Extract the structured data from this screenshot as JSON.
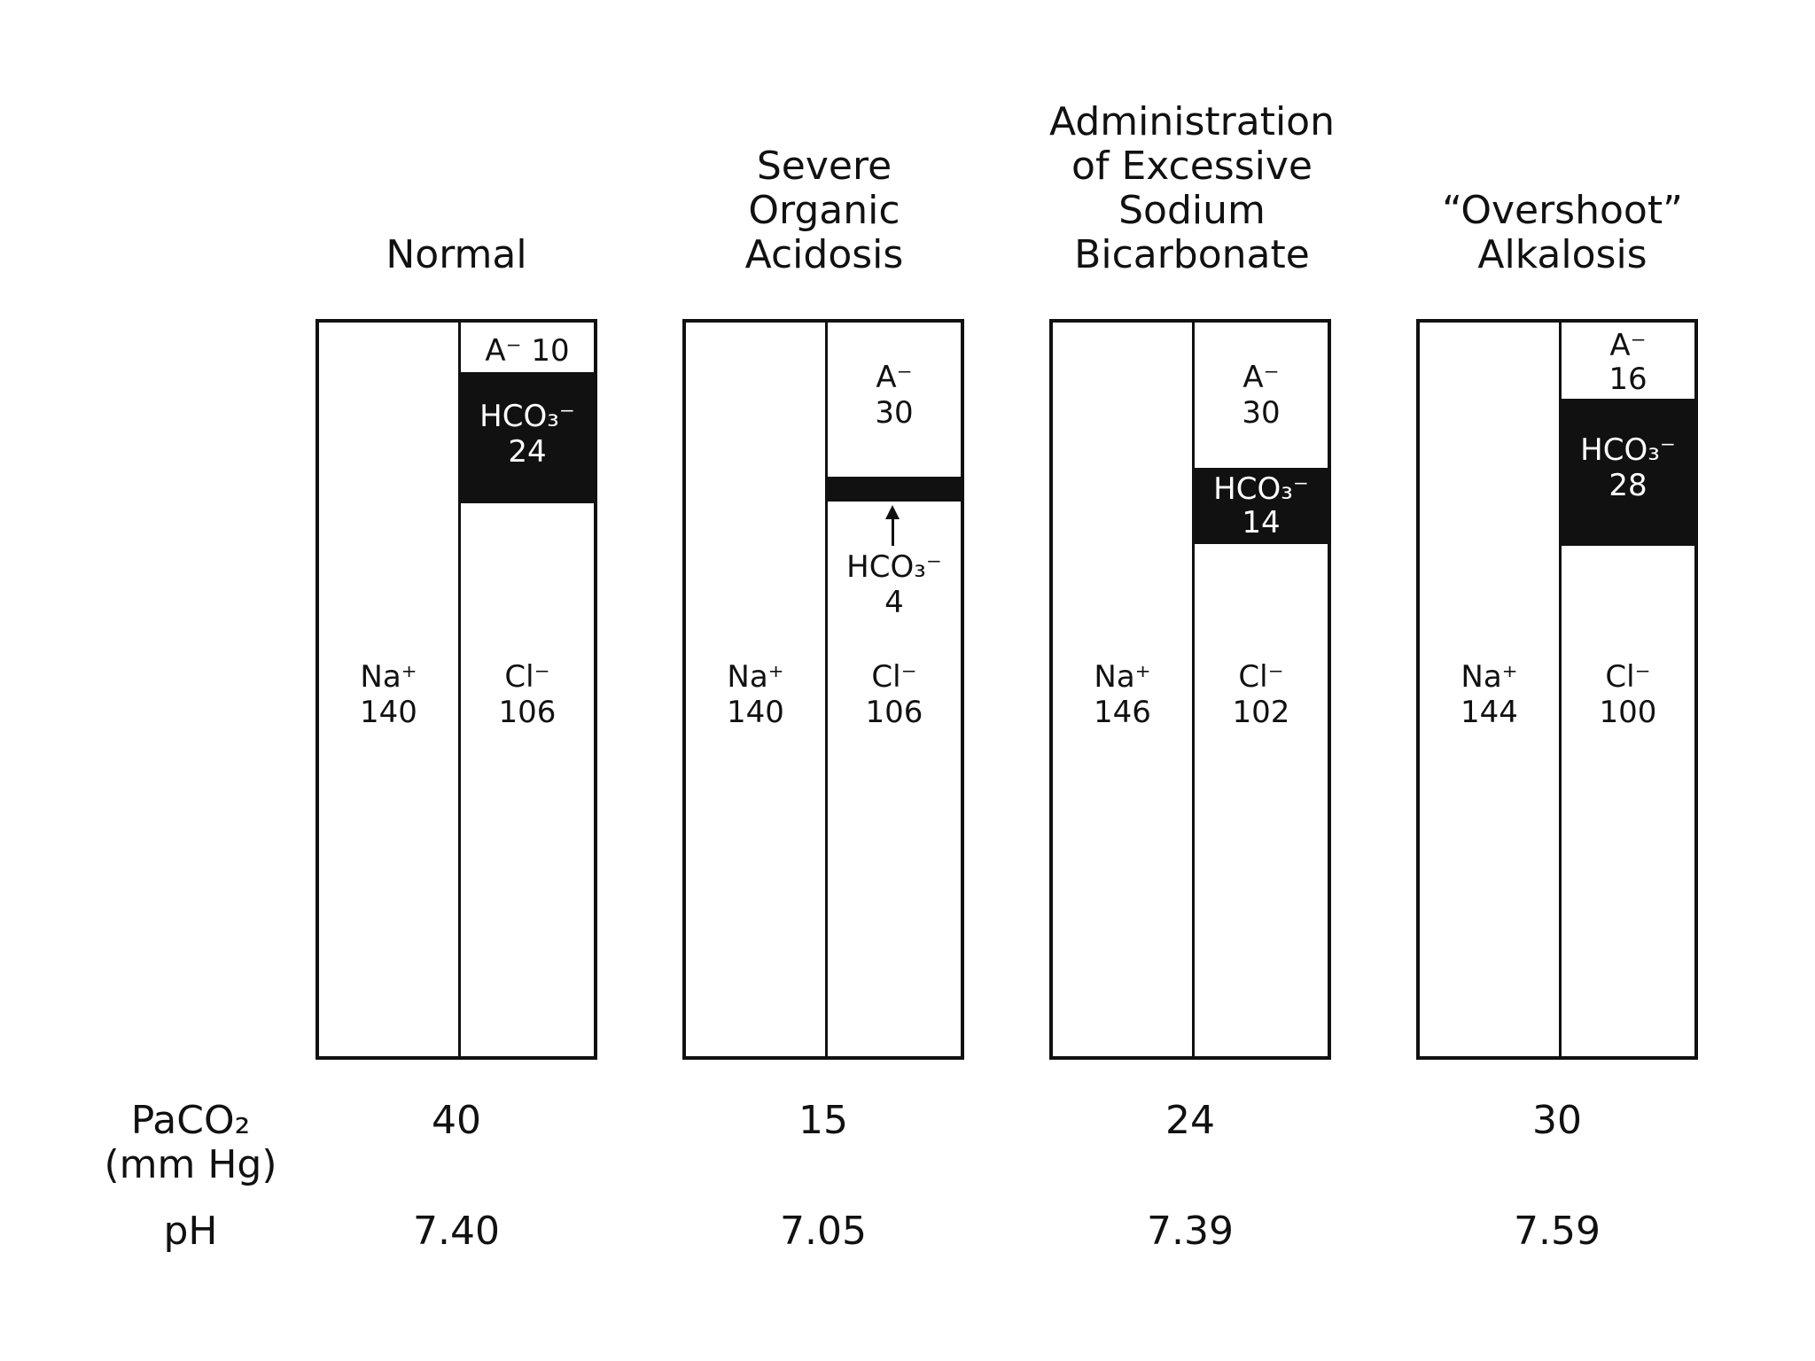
{
  "panels": [
    {
      "title": "Normal",
      "cation": {
        "ion": "Na⁺",
        "value": "140"
      },
      "anions": {
        "a": {
          "ion": "A⁻",
          "value": "10",
          "inline": "A⁻ 10"
        },
        "hco3": {
          "ion": "HCO₃⁻",
          "value": "24"
        },
        "cl": {
          "ion": "Cl⁻",
          "value": "106"
        }
      },
      "paco2": "40",
      "ph": "7.40"
    },
    {
      "title": "Severe\nOrganic\nAcidosis",
      "cation": {
        "ion": "Na⁺",
        "value": "140"
      },
      "anions": {
        "a": {
          "ion": "A⁻",
          "value": "30"
        },
        "hco3": {
          "ion": "HCO₃⁻",
          "value": "4"
        },
        "cl": {
          "ion": "Cl⁻",
          "value": "106"
        }
      },
      "paco2": "15",
      "ph": "7.05"
    },
    {
      "title": "Administration\nof Excessive\nSodium\nBicarbonate",
      "cation": {
        "ion": "Na⁺",
        "value": "146"
      },
      "anions": {
        "a": {
          "ion": "A⁻",
          "value": "30"
        },
        "hco3": {
          "ion": "HCO₃⁻",
          "value": "14"
        },
        "cl": {
          "ion": "Cl⁻",
          "value": "102"
        }
      },
      "paco2": "24",
      "ph": "7.39"
    },
    {
      "title": "“Overshoot”\nAlkalosis",
      "cation": {
        "ion": "Na⁺",
        "value": "144"
      },
      "anions": {
        "a": {
          "ion": "A⁻",
          "value": "16"
        },
        "hco3": {
          "ion": "HCO₃⁻",
          "value": "28"
        },
        "cl": {
          "ion": "Cl⁻",
          "value": "100"
        }
      },
      "paco2": "30",
      "ph": "7.59"
    }
  ],
  "rows": {
    "paco2_label": "PaCO₂",
    "paco2_unit": "(mm Hg)",
    "ph_label": "pH"
  }
}
